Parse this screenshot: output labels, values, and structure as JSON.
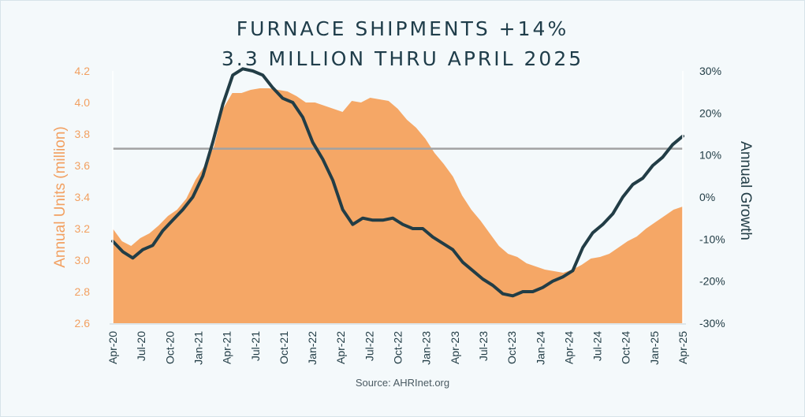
{
  "title_line1": "FURNACE SHIPMENTS +14%",
  "title_line2": "3.3 MILLION THRU APRIL 2025",
  "source": "Source: AHRInet.org",
  "colors": {
    "area": "#f5a766",
    "line": "#223d46",
    "reference": "#a2a2a2",
    "left_axis_text": "#f2a061",
    "title": "#1f3d4a"
  },
  "chart_data": {
    "type": "area+line",
    "grid": false,
    "x_tick_labels": [
      "Apr-20",
      "Jul-20",
      "Oct-20",
      "Jan-21",
      "Apr-21",
      "Jul-21",
      "Oct-21",
      "Jan-22",
      "Apr-22",
      "Jul-22",
      "Oct-22",
      "Jan-23",
      "Apr-23",
      "Jul-23",
      "Oct-23",
      "Jan-24",
      "Apr-24",
      "Jul-24",
      "Oct-24",
      "Jan-25",
      "Apr-25"
    ],
    "y_left": {
      "label": "Annual Units (million)",
      "range": [
        2.6,
        4.2
      ],
      "ticks": [
        "2.6",
        "2.8",
        "3.0",
        "3.2",
        "3.4",
        "3.6",
        "3.8",
        "4.0",
        "4.2"
      ]
    },
    "y_right": {
      "label": "Annual Growth",
      "range": [
        -30,
        30
      ],
      "ticks": [
        "-30%",
        "-20%",
        "-10%",
        "0%",
        "10%",
        "20%",
        "30%"
      ]
    },
    "reference_line_growth": 11.5,
    "annual_units_million": [
      3.2,
      3.12,
      3.09,
      3.14,
      3.17,
      3.22,
      3.28,
      3.32,
      3.39,
      3.51,
      3.6,
      3.72,
      3.96,
      4.06,
      4.06,
      4.08,
      4.09,
      4.09,
      4.08,
      4.07,
      4.04,
      4.0,
      4.0,
      3.98,
      3.96,
      3.94,
      4.01,
      4.0,
      4.03,
      4.02,
      4.01,
      3.96,
      3.89,
      3.84,
      3.77,
      3.68,
      3.61,
      3.53,
      3.41,
      3.32,
      3.25,
      3.17,
      3.09,
      3.04,
      3.02,
      2.98,
      2.96,
      2.94,
      2.93,
      2.92,
      2.94,
      2.97,
      3.01,
      3.02,
      3.04,
      3.08,
      3.12,
      3.15,
      3.2,
      3.24,
      3.28,
      3.32,
      3.34
    ],
    "annual_growth_pct": [
      -10.5,
      -13,
      -14.5,
      -12.5,
      -11.5,
      -8,
      -5.5,
      -3,
      0,
      5,
      13,
      22,
      29,
      30.5,
      30,
      29,
      26,
      23.5,
      22.5,
      19,
      13,
      9,
      4,
      -3,
      -6.5,
      -5,
      -5.5,
      -5.5,
      -5,
      -6.5,
      -7.5,
      -7.5,
      -9.5,
      -11,
      -12.5,
      -15.5,
      -17.5,
      -19.5,
      -21,
      -23,
      -23.5,
      -22.5,
      -22.5,
      -21.5,
      -20,
      -19,
      -17.5,
      -12,
      -8.5,
      -6.5,
      -4,
      0,
      3,
      4.5,
      7.5,
      9.5,
      12.5,
      14.5
    ]
  }
}
